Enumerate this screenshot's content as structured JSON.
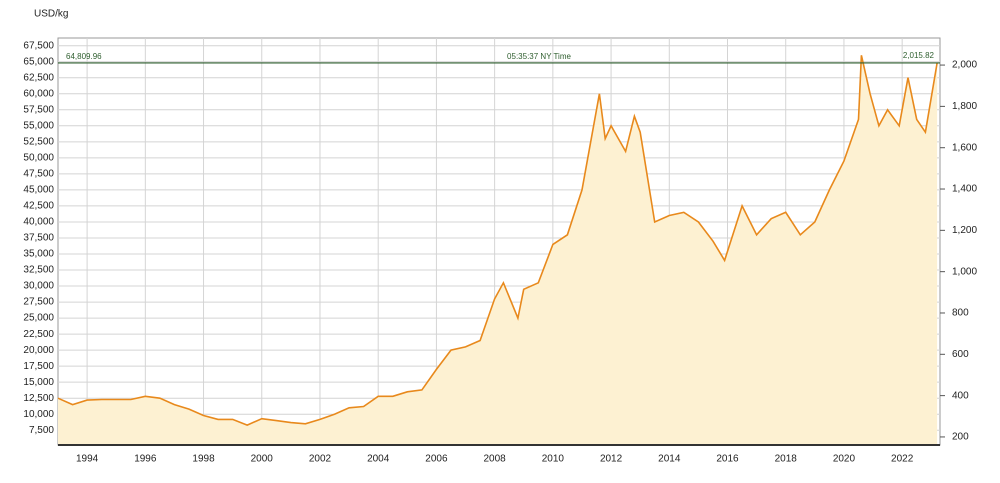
{
  "chart_data": {
    "type": "area",
    "y_label": "USD/kg",
    "annotations": [
      {
        "label": "64,809.96",
        "value": 64809.96
      },
      {
        "label": "05:35:37 NY Time"
      },
      {
        "label": "2,015.82",
        "value": 2015.82
      }
    ],
    "color": "#e8891c",
    "fill": "#fdf1d2",
    "grid": true,
    "x": [
      1993.0,
      1993.5,
      1994.0,
      1994.5,
      1995.0,
      1995.5,
      1996.0,
      1996.5,
      1997.0,
      1997.5,
      1998.0,
      1998.5,
      1999.0,
      1999.5,
      2000.0,
      2000.5,
      2001.0,
      2001.5,
      2002.0,
      2002.5,
      2003.0,
      2003.5,
      2004.0,
      2004.5,
      2005.0,
      2005.5,
      2006.0,
      2006.5,
      2007.0,
      2007.5,
      2008.0,
      2008.3,
      2008.8,
      2009.0,
      2009.5,
      2010.0,
      2010.5,
      2011.0,
      2011.6,
      2011.8,
      2012.0,
      2012.5,
      2012.8,
      2013.0,
      2013.5,
      2014.0,
      2014.5,
      2015.0,
      2015.5,
      2015.9,
      2016.5,
      2017.0,
      2017.5,
      2018.0,
      2018.5,
      2019.0,
      2019.5,
      2020.0,
      2020.5,
      2020.6,
      2020.9,
      2021.2,
      2021.5,
      2021.9,
      2022.2,
      2022.5,
      2022.8,
      2023.2
    ],
    "values": [
      12500,
      11500,
      12200,
      12300,
      12300,
      12300,
      12800,
      12500,
      11500,
      10800,
      9800,
      9200,
      9200,
      8300,
      9300,
      9000,
      8700,
      8500,
      9200,
      10000,
      11000,
      11200,
      12800,
      12800,
      13500,
      13800,
      17000,
      20000,
      20500,
      21500,
      28000,
      30500,
      25000,
      29500,
      30500,
      36500,
      38000,
      45000,
      60000,
      53000,
      55000,
      51000,
      56500,
      54000,
      40000,
      41000,
      41500,
      40000,
      37000,
      34000,
      42500,
      38000,
      40500,
      41500,
      38000,
      40000,
      45000,
      49500,
      56000,
      66000,
      60000,
      55000,
      57500,
      55000,
      62500,
      56000,
      54000,
      64800
    ],
    "xlim": [
      1993,
      2023.3
    ],
    "xticks": [
      1994,
      1996,
      1998,
      2000,
      2002,
      2004,
      2006,
      2008,
      2010,
      2012,
      2014,
      2016,
      2018,
      2020,
      2022
    ],
    "ylim": [
      5200,
      68700
    ],
    "yticks": [
      {
        "value": 7500,
        "label": "7,500"
      },
      {
        "value": 10000,
        "label": "10,000"
      },
      {
        "value": 12500,
        "label": "12,500"
      },
      {
        "value": 15000,
        "label": "15,000"
      },
      {
        "value": 17500,
        "label": "17,500"
      },
      {
        "value": 20000,
        "label": "20,000"
      },
      {
        "value": 22500,
        "label": "22,500"
      },
      {
        "value": 25000,
        "label": "25,000"
      },
      {
        "value": 27500,
        "label": "27,500"
      },
      {
        "value": 30000,
        "label": "30,000"
      },
      {
        "value": 32500,
        "label": "32,500"
      },
      {
        "value": 35000,
        "label": "35,000"
      },
      {
        "value": 37500,
        "label": "37,500"
      },
      {
        "value": 40000,
        "label": "40,000"
      },
      {
        "value": 42500,
        "label": "42,500"
      },
      {
        "value": 45000,
        "label": "45,000"
      },
      {
        "value": 47500,
        "label": "47,500"
      },
      {
        "value": 50000,
        "label": "50,000"
      },
      {
        "value": 52500,
        "label": "52,500"
      },
      {
        "value": 55000,
        "label": "55,000"
      },
      {
        "value": 57500,
        "label": "57,500"
      },
      {
        "value": 60000,
        "label": "60,000"
      },
      {
        "value": 62500,
        "label": "62,500"
      },
      {
        "value": 65000,
        "label": "65,000"
      },
      {
        "value": 67500,
        "label": "67,500"
      }
    ],
    "y2lim": [
      161,
      2131
    ],
    "y2ticks": [
      200,
      400,
      600,
      800,
      {
        "value": 1000,
        "label": "1,000"
      },
      {
        "value": 1200,
        "label": "1,200"
      },
      {
        "value": 1400,
        "label": "1,400"
      },
      {
        "value": 1600,
        "label": "1,600"
      },
      {
        "value": 1800,
        "label": "1,800"
      },
      {
        "value": 2000,
        "label": "2,000"
      }
    ]
  }
}
